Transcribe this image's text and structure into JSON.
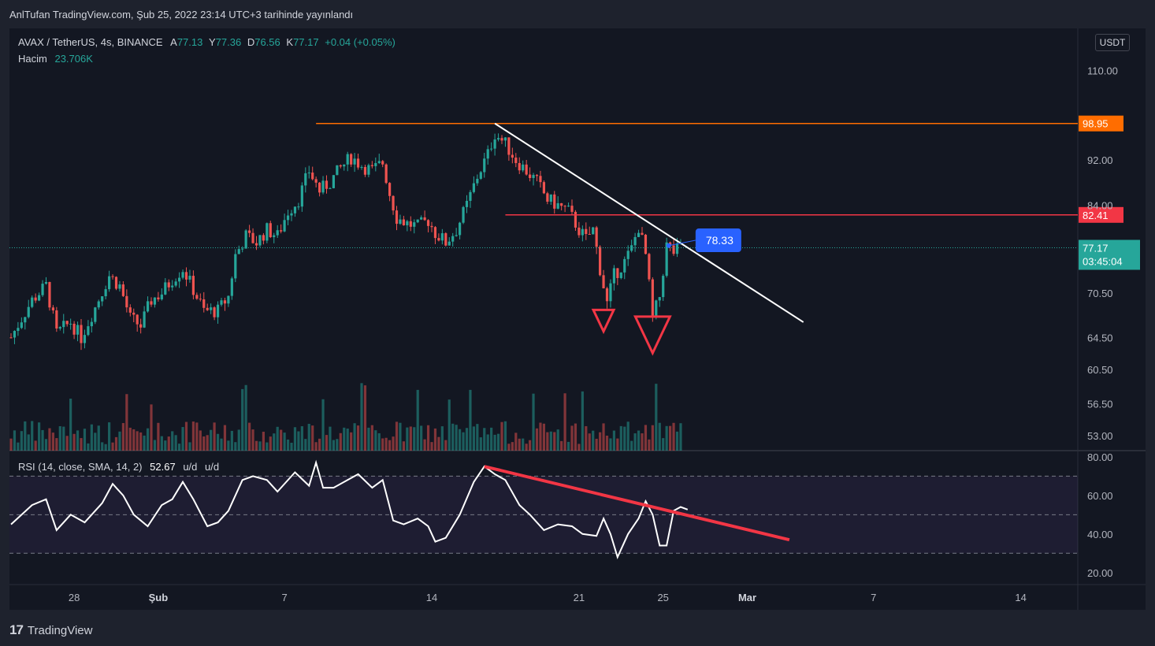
{
  "header": {
    "publish_text": "AnlTufan TradingView.com, Şub 25, 2022 23:14 UTC+3 tarihinde yayınlandı"
  },
  "legend": {
    "symbol": "AVAX / TetherUS, 4s, BINANCE",
    "a_label": "A",
    "a_value": "77.13",
    "y_label": "Y",
    "y_value": "77.36",
    "d_label": "D",
    "d_value": "76.56",
    "k_label": "K",
    "k_value": "77.17",
    "change": "+0.04 (+0.05%)",
    "volume_label": "Hacim",
    "volume_value": "23.706K",
    "rsi_label": "RSI (14, close, SMA, 14, 2)",
    "rsi_value": "52.67",
    "rsi_extra1": "u/d",
    "rsi_extra2": "u/d"
  },
  "currency_button": "USDT",
  "footer": {
    "brand": "TradingView",
    "logo_glyph": "17"
  },
  "colors": {
    "up": "#26a69a",
    "down": "#ef5350",
    "orange": "#ff6d00",
    "red": "#f23645",
    "blue": "#2962ff",
    "rsi": "#ffffff",
    "rsi_trend": "#f23645"
  },
  "chart_data": [
    {
      "type": "candlestick",
      "title": "AVAX / TetherUS, 4s, BINANCE",
      "y_scale": "log",
      "ylim": [
        52,
        118
      ],
      "y_ticks": [
        "110.00",
        "92.00",
        "84.00",
        "70.50",
        "64.50",
        "60.50",
        "56.50",
        "53.00"
      ],
      "x_ticks": [
        "28",
        "Şub",
        "7",
        "14",
        "21",
        "25",
        "Mar",
        "7",
        "14"
      ],
      "x_tick_dates": [
        "2022-01-28",
        "2022-02-01",
        "2022-02-07",
        "2022-02-14",
        "2022-02-21",
        "2022-02-25",
        "2022-03-01",
        "2022-03-07",
        "2022-03-14"
      ],
      "x_range": [
        "2022-01-25",
        "2022-03-17"
      ],
      "close_path": [
        {
          "t": "2022-01-25 00:00",
          "v": 64.5
        },
        {
          "t": "2022-01-26 00:00",
          "v": 69.5
        },
        {
          "t": "2022-01-26 16:00",
          "v": 71.5
        },
        {
          "t": "2022-01-27 04:00",
          "v": 65.0
        },
        {
          "t": "2022-01-27 20:00",
          "v": 66.5
        },
        {
          "t": "2022-01-28 08:00",
          "v": 64.5
        },
        {
          "t": "2022-01-29 00:00",
          "v": 68.5
        },
        {
          "t": "2022-01-29 16:00",
          "v": 73.0
        },
        {
          "t": "2022-01-30 04:00",
          "v": 71.5
        },
        {
          "t": "2022-01-30 16:00",
          "v": 67.0
        },
        {
          "t": "2022-01-31 04:00",
          "v": 66.0
        },
        {
          "t": "2022-01-31 16:00",
          "v": 69.5
        },
        {
          "t": "2022-02-01 04:00",
          "v": 70.5
        },
        {
          "t": "2022-02-01 16:00",
          "v": 72.5
        },
        {
          "t": "2022-02-02 04:00",
          "v": 74.0
        },
        {
          "t": "2022-02-02 16:00",
          "v": 71.0
        },
        {
          "t": "2022-02-03 04:00",
          "v": 68.0
        },
        {
          "t": "2022-02-03 20:00",
          "v": 68.0
        },
        {
          "t": "2022-02-04 08:00",
          "v": 70.0
        },
        {
          "t": "2022-02-04 16:00",
          "v": 76.0
        },
        {
          "t": "2022-02-05 04:00",
          "v": 79.0
        },
        {
          "t": "2022-02-05 16:00",
          "v": 78.0
        },
        {
          "t": "2022-02-06 04:00",
          "v": 80.0
        },
        {
          "t": "2022-02-06 16:00",
          "v": 79.0
        },
        {
          "t": "2022-02-07 04:00",
          "v": 83.0
        },
        {
          "t": "2022-02-07 16:00",
          "v": 85.0
        },
        {
          "t": "2022-02-08 04:00",
          "v": 90.0
        },
        {
          "t": "2022-02-08 16:00",
          "v": 86.5
        },
        {
          "t": "2022-02-09 04:00",
          "v": 88.0
        },
        {
          "t": "2022-02-09 16:00",
          "v": 90.5
        },
        {
          "t": "2022-02-10 04:00",
          "v": 92.5
        },
        {
          "t": "2022-02-10 16:00",
          "v": 91.0
        },
        {
          "t": "2022-02-11 04:00",
          "v": 90.0
        },
        {
          "t": "2022-02-11 16:00",
          "v": 91.5
        },
        {
          "t": "2022-02-12 00:00",
          "v": 86.0
        },
        {
          "t": "2022-02-12 08:00",
          "v": 82.0
        },
        {
          "t": "2022-02-12 20:00",
          "v": 81.0
        },
        {
          "t": "2022-02-13 08:00",
          "v": 80.5
        },
        {
          "t": "2022-02-13 20:00",
          "v": 81.5
        },
        {
          "t": "2022-02-14 04:00",
          "v": 79.5
        },
        {
          "t": "2022-02-14 16:00",
          "v": 78.0
        },
        {
          "t": "2022-02-15 04:00",
          "v": 80.0
        },
        {
          "t": "2022-02-15 16:00",
          "v": 84.0
        },
        {
          "t": "2022-02-16 04:00",
          "v": 89.0
        },
        {
          "t": "2022-02-16 16:00",
          "v": 93.0
        },
        {
          "t": "2022-02-17 00:00",
          "v": 97.0
        },
        {
          "t": "2022-02-17 12:00",
          "v": 95.0
        },
        {
          "t": "2022-02-18 00:00",
          "v": 92.0
        },
        {
          "t": "2022-02-18 12:00",
          "v": 90.0
        },
        {
          "t": "2022-02-19 00:00",
          "v": 88.0
        },
        {
          "t": "2022-02-19 12:00",
          "v": 85.0
        },
        {
          "t": "2022-02-20 00:00",
          "v": 84.0
        },
        {
          "t": "2022-02-20 12:00",
          "v": 83.0
        },
        {
          "t": "2022-02-21 00:00",
          "v": 80.0
        },
        {
          "t": "2022-02-21 08:00",
          "v": 78.5
        },
        {
          "t": "2022-02-21 16:00",
          "v": 80.0
        },
        {
          "t": "2022-02-22 00:00",
          "v": 74.0
        },
        {
          "t": "2022-02-22 08:00",
          "v": 69.0
        },
        {
          "t": "2022-02-22 16:00",
          "v": 73.0
        },
        {
          "t": "2022-02-23 04:00",
          "v": 75.0
        },
        {
          "t": "2022-02-23 12:00",
          "v": 77.0
        },
        {
          "t": "2022-02-23 20:00",
          "v": 80.5
        },
        {
          "t": "2022-02-24 04:00",
          "v": 76.0
        },
        {
          "t": "2022-02-24 12:00",
          "v": 67.0
        },
        {
          "t": "2022-02-24 20:00",
          "v": 70.0
        },
        {
          "t": "2022-02-25 04:00",
          "v": 77.5
        },
        {
          "t": "2022-02-25 12:00",
          "v": 76.5
        },
        {
          "t": "2022-02-25 20:00",
          "v": 77.17
        }
      ],
      "volume_label": "Hacim",
      "horizontal_levels": [
        {
          "label": "98.95",
          "value": 98.95,
          "color": "#ff6d00",
          "start": "2022-02-08 12:00"
        },
        {
          "label": "82.41",
          "value": 82.41,
          "color": "#f23645",
          "start": "2022-02-17 12:00"
        }
      ],
      "last_price": {
        "label": "77.17",
        "value": 77.17,
        "countdown": "03:45:04"
      },
      "trendline": {
        "points": [
          {
            "t": "2022-02-17 00:00",
            "v": 98.95
          },
          {
            "t": "2022-03-03 16:00",
            "v": 66.5
          }
        ]
      },
      "annotation": {
        "label": "78.33",
        "t": "2022-02-26 04:00",
        "v": 78.33
      },
      "markers": [
        {
          "shape": "down-triangle",
          "t": "2022-02-22 04:00",
          "v": 66.5
        },
        {
          "shape": "down-triangle",
          "t": "2022-02-24 12:00",
          "v": 64.5
        }
      ]
    },
    {
      "type": "line",
      "title": "RSI (14, close, SMA, 14, 2)",
      "ylim": [
        15,
        82
      ],
      "y_ticks": [
        "80.00",
        "60.00",
        "40.00",
        "20.00"
      ],
      "bands": [
        30,
        50,
        70
      ],
      "last_value": 52.67,
      "points": [
        {
          "t": "2022-01-25 00:00",
          "v": 45
        },
        {
          "t": "2022-01-26 00:00",
          "v": 55
        },
        {
          "t": "2022-01-26 16:00",
          "v": 58
        },
        {
          "t": "2022-01-27 04:00",
          "v": 42
        },
        {
          "t": "2022-01-27 20:00",
          "v": 50
        },
        {
          "t": "2022-01-28 12:00",
          "v": 46
        },
        {
          "t": "2022-01-29 08:00",
          "v": 56
        },
        {
          "t": "2022-01-29 20:00",
          "v": 66
        },
        {
          "t": "2022-01-30 08:00",
          "v": 60
        },
        {
          "t": "2022-01-30 20:00",
          "v": 50
        },
        {
          "t": "2022-01-31 12:00",
          "v": 44
        },
        {
          "t": "2022-02-01 04:00",
          "v": 55
        },
        {
          "t": "2022-02-01 16:00",
          "v": 58
        },
        {
          "t": "2022-02-02 04:00",
          "v": 67
        },
        {
          "t": "2022-02-02 16:00",
          "v": 58
        },
        {
          "t": "2022-02-03 08:00",
          "v": 44
        },
        {
          "t": "2022-02-03 20:00",
          "v": 46
        },
        {
          "t": "2022-02-04 08:00",
          "v": 52
        },
        {
          "t": "2022-02-05 00:00",
          "v": 68
        },
        {
          "t": "2022-02-05 12:00",
          "v": 70
        },
        {
          "t": "2022-02-06 04:00",
          "v": 68
        },
        {
          "t": "2022-02-06 16:00",
          "v": 62
        },
        {
          "t": "2022-02-07 12:00",
          "v": 72
        },
        {
          "t": "2022-02-08 04:00",
          "v": 65
        },
        {
          "t": "2022-02-08 12:00",
          "v": 77
        },
        {
          "t": "2022-02-08 20:00",
          "v": 64
        },
        {
          "t": "2022-02-09 08:00",
          "v": 64
        },
        {
          "t": "2022-02-10 00:00",
          "v": 68
        },
        {
          "t": "2022-02-10 12:00",
          "v": 71
        },
        {
          "t": "2022-02-11 04:00",
          "v": 64
        },
        {
          "t": "2022-02-11 16:00",
          "v": 68
        },
        {
          "t": "2022-02-12 04:00",
          "v": 47
        },
        {
          "t": "2022-02-12 16:00",
          "v": 45
        },
        {
          "t": "2022-02-13 08:00",
          "v": 48
        },
        {
          "t": "2022-02-13 20:00",
          "v": 44
        },
        {
          "t": "2022-02-14 04:00",
          "v": 36
        },
        {
          "t": "2022-02-14 16:00",
          "v": 38
        },
        {
          "t": "2022-02-15 08:00",
          "v": 50
        },
        {
          "t": "2022-02-16 00:00",
          "v": 67
        },
        {
          "t": "2022-02-16 12:00",
          "v": 75
        },
        {
          "t": "2022-02-17 00:00",
          "v": 71
        },
        {
          "t": "2022-02-17 12:00",
          "v": 68
        },
        {
          "t": "2022-02-18 04:00",
          "v": 55
        },
        {
          "t": "2022-02-18 16:00",
          "v": 50
        },
        {
          "t": "2022-02-19 08:00",
          "v": 42
        },
        {
          "t": "2022-02-20 00:00",
          "v": 45
        },
        {
          "t": "2022-02-20 16:00",
          "v": 44
        },
        {
          "t": "2022-02-21 04:00",
          "v": 40
        },
        {
          "t": "2022-02-21 20:00",
          "v": 39
        },
        {
          "t": "2022-02-22 04:00",
          "v": 48
        },
        {
          "t": "2022-02-22 12:00",
          "v": 40
        },
        {
          "t": "2022-02-22 20:00",
          "v": 28
        },
        {
          "t": "2022-02-23 08:00",
          "v": 40
        },
        {
          "t": "2022-02-23 20:00",
          "v": 48
        },
        {
          "t": "2022-02-24 04:00",
          "v": 57
        },
        {
          "t": "2022-02-24 12:00",
          "v": 50
        },
        {
          "t": "2022-02-24 20:00",
          "v": 34
        },
        {
          "t": "2022-02-25 04:00",
          "v": 34
        },
        {
          "t": "2022-02-25 12:00",
          "v": 52
        },
        {
          "t": "2022-02-25 20:00",
          "v": 54
        },
        {
          "t": "2022-02-26 04:00",
          "v": 52.67
        }
      ],
      "trendline": {
        "points": [
          {
            "t": "2022-02-16 12:00",
            "v": 75
          },
          {
            "t": "2022-03-03 00:00",
            "v": 37
          }
        ]
      }
    }
  ]
}
